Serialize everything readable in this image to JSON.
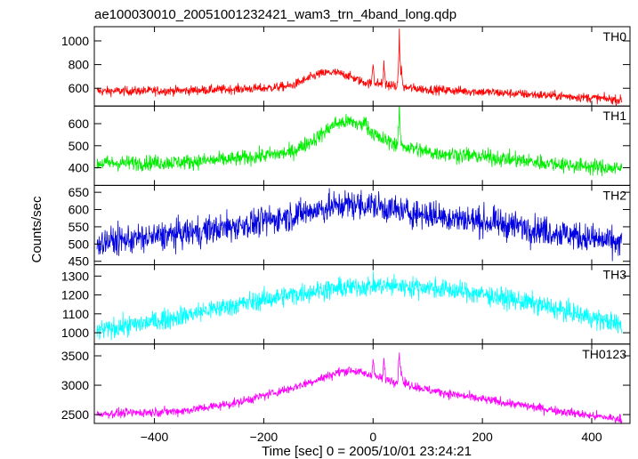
{
  "chart_data": {
    "type": "line",
    "title": "ae100030010_20051001232421_wam3_trn_4band_long.qdp",
    "xlabel": "Time [sec] 0 = 2005/10/01 23:24:21",
    "ylabel": "Counts/sec",
    "xlim": [
      -510,
      470
    ],
    "x_ticks": [
      -400,
      -200,
      0,
      200,
      400
    ],
    "grid": false,
    "legend": "none",
    "panels": [
      {
        "name": "TH0",
        "color": "#ff0000",
        "ylim": [
          450,
          1120
        ],
        "y_ticks": [
          600,
          800,
          1000
        ],
        "noise": 28,
        "points": [
          [
            -505,
            575
          ],
          [
            -350,
            580
          ],
          [
            -200,
            600
          ],
          [
            -150,
            620
          ],
          [
            -100,
            720
          ],
          [
            -75,
            735
          ],
          [
            -50,
            715
          ],
          [
            -20,
            655
          ],
          [
            -5,
            640
          ],
          [
            10,
            640
          ],
          [
            30,
            625
          ],
          [
            60,
            605
          ],
          [
            100,
            590
          ],
          [
            200,
            570
          ],
          [
            300,
            545
          ],
          [
            400,
            520
          ],
          [
            455,
            500
          ]
        ],
        "spikes": [
          [
            0,
            850
          ],
          [
            20,
            820
          ],
          [
            48,
            1110
          ],
          [
            52,
            780
          ]
        ]
      },
      {
        "name": "TH1",
        "color": "#00ee00",
        "ylim": [
          320,
          680
        ],
        "y_ticks": [
          400,
          500,
          600
        ],
        "noise": 25,
        "points": [
          [
            -505,
            420
          ],
          [
            -350,
            425
          ],
          [
            -250,
            440
          ],
          [
            -150,
            470
          ],
          [
            -100,
            540
          ],
          [
            -70,
            600
          ],
          [
            -40,
            610
          ],
          [
            -10,
            580
          ],
          [
            10,
            535
          ],
          [
            40,
            510
          ],
          [
            100,
            470
          ],
          [
            200,
            450
          ],
          [
            300,
            425
          ],
          [
            400,
            405
          ],
          [
            455,
            395
          ]
        ],
        "spikes": [
          [
            -15,
            650
          ],
          [
            48,
            680
          ]
        ]
      },
      {
        "name": "TH2",
        "color": "#0000e0",
        "ylim": [
          440,
          670
        ],
        "y_ticks": [
          450,
          500,
          550,
          600,
          650
        ],
        "noise": 30,
        "points": [
          [
            -505,
            505
          ],
          [
            -400,
            520
          ],
          [
            -300,
            540
          ],
          [
            -200,
            565
          ],
          [
            -100,
            600
          ],
          [
            -50,
            615
          ],
          [
            0,
            612
          ],
          [
            50,
            595
          ],
          [
            150,
            575
          ],
          [
            250,
            555
          ],
          [
            350,
            530
          ],
          [
            455,
            500
          ]
        ],
        "spikes": []
      },
      {
        "name": "TH3",
        "color": "#00ffff",
        "ylim": [
          940,
          1360
        ],
        "y_ticks": [
          1000,
          1100,
          1200,
          1300
        ],
        "noise": 38,
        "points": [
          [
            -505,
            1010
          ],
          [
            -400,
            1060
          ],
          [
            -300,
            1120
          ],
          [
            -200,
            1175
          ],
          [
            -100,
            1225
          ],
          [
            0,
            1250
          ],
          [
            100,
            1240
          ],
          [
            200,
            1205
          ],
          [
            300,
            1150
          ],
          [
            400,
            1080
          ],
          [
            455,
            1040
          ]
        ],
        "spikes": []
      },
      {
        "name": "TH0123",
        "color": "#ff00ff",
        "ylim": [
          2350,
          3700
        ],
        "y_ticks": [
          2500,
          3000,
          3500
        ],
        "noise": 55,
        "points": [
          [
            -505,
            2510
          ],
          [
            -350,
            2560
          ],
          [
            -250,
            2700
          ],
          [
            -150,
            2950
          ],
          [
            -100,
            3100
          ],
          [
            -60,
            3230
          ],
          [
            -40,
            3260
          ],
          [
            -10,
            3180
          ],
          [
            10,
            3130
          ],
          [
            50,
            3050
          ],
          [
            100,
            2920
          ],
          [
            200,
            2760
          ],
          [
            300,
            2620
          ],
          [
            400,
            2480
          ],
          [
            455,
            2420
          ]
        ],
        "spikes": [
          [
            0,
            3530
          ],
          [
            20,
            3470
          ],
          [
            48,
            3690
          ],
          [
            52,
            3300
          ]
        ]
      }
    ]
  }
}
